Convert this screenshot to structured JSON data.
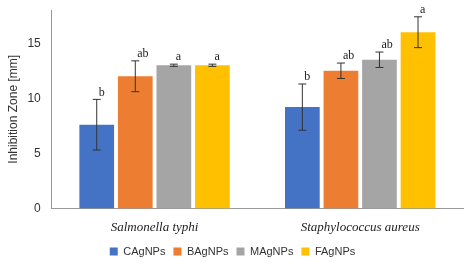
{
  "chart_data": {
    "type": "bar",
    "y_label": "Inhibition Zone [mm]",
    "categories": [
      "Salmonella typhi",
      "Staphylococcus aureus"
    ],
    "series": [
      {
        "name": "CAgNPs",
        "color": "#4472c4",
        "values": [
          7.6,
          9.2
        ],
        "error": [
          2.3,
          2.1
        ],
        "letters": [
          "b",
          "b"
        ]
      },
      {
        "name": "BAgNPs",
        "color": "#ed7d31",
        "values": [
          12.0,
          12.5
        ],
        "error": [
          1.4,
          0.7
        ],
        "letters": [
          "ab",
          "ab"
        ]
      },
      {
        "name": "MAgNPs",
        "color": "#a5a5a5",
        "values": [
          13.0,
          13.5
        ],
        "error": [
          0.1,
          0.7
        ],
        "letters": [
          "a",
          "ab"
        ]
      },
      {
        "name": "FAgNPs",
        "color": "#ffc000",
        "values": [
          13.0,
          16.0
        ],
        "error": [
          0.1,
          1.4
        ],
        "letters": [
          "a",
          "a"
        ]
      }
    ],
    "ylim": [
      0,
      18
    ],
    "yticks": [
      0,
      5,
      10,
      15
    ],
    "grid": false,
    "legend": "bottom"
  }
}
